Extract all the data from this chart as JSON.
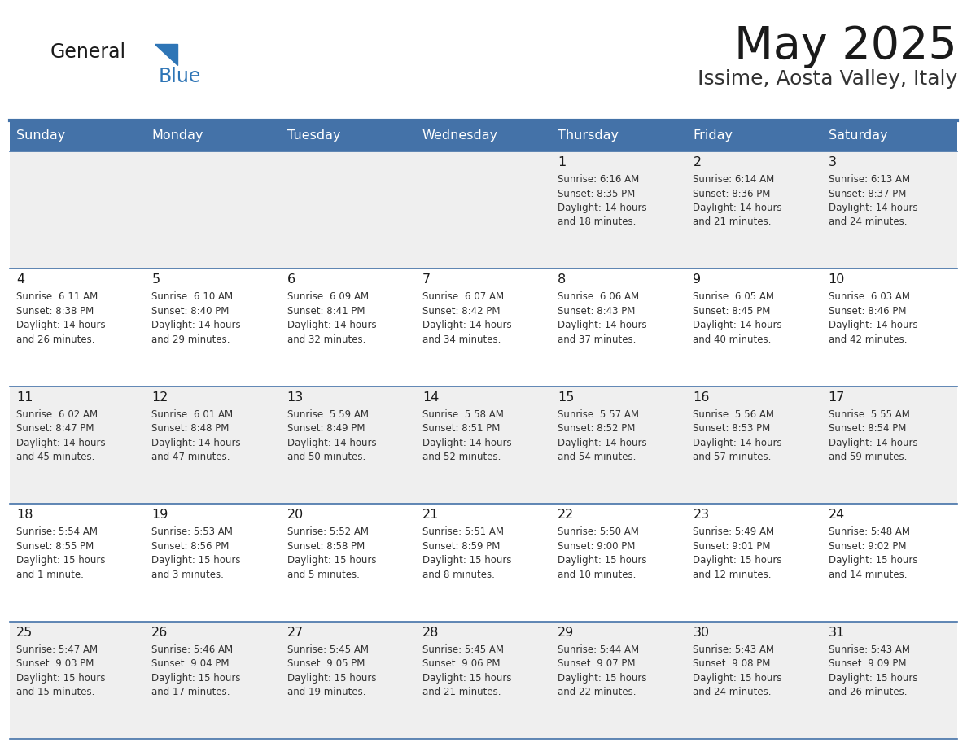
{
  "title": "May 2025",
  "subtitle": "Issime, Aosta Valley, Italy",
  "header_bg": "#4472A8",
  "header_text": "#FFFFFF",
  "row_bg_odd": "#EFEFEF",
  "row_bg_even": "#FFFFFF",
  "border_color": "#4472A8",
  "border_color_light": "#C8C8C8",
  "day_names": [
    "Sunday",
    "Monday",
    "Tuesday",
    "Wednesday",
    "Thursday",
    "Friday",
    "Saturday"
  ],
  "title_color": "#1A1A1A",
  "subtitle_color": "#333333",
  "day_number_color": "#1A1A1A",
  "info_color": "#333333",
  "logo_general_color": "#1A1A1A",
  "logo_blue_color": "#2E75B6",
  "weeks": [
    [
      {
        "day": "",
        "info": ""
      },
      {
        "day": "",
        "info": ""
      },
      {
        "day": "",
        "info": ""
      },
      {
        "day": "",
        "info": ""
      },
      {
        "day": "1",
        "info": "Sunrise: 6:16 AM\nSunset: 8:35 PM\nDaylight: 14 hours\nand 18 minutes."
      },
      {
        "day": "2",
        "info": "Sunrise: 6:14 AM\nSunset: 8:36 PM\nDaylight: 14 hours\nand 21 minutes."
      },
      {
        "day": "3",
        "info": "Sunrise: 6:13 AM\nSunset: 8:37 PM\nDaylight: 14 hours\nand 24 minutes."
      }
    ],
    [
      {
        "day": "4",
        "info": "Sunrise: 6:11 AM\nSunset: 8:38 PM\nDaylight: 14 hours\nand 26 minutes."
      },
      {
        "day": "5",
        "info": "Sunrise: 6:10 AM\nSunset: 8:40 PM\nDaylight: 14 hours\nand 29 minutes."
      },
      {
        "day": "6",
        "info": "Sunrise: 6:09 AM\nSunset: 8:41 PM\nDaylight: 14 hours\nand 32 minutes."
      },
      {
        "day": "7",
        "info": "Sunrise: 6:07 AM\nSunset: 8:42 PM\nDaylight: 14 hours\nand 34 minutes."
      },
      {
        "day": "8",
        "info": "Sunrise: 6:06 AM\nSunset: 8:43 PM\nDaylight: 14 hours\nand 37 minutes."
      },
      {
        "day": "9",
        "info": "Sunrise: 6:05 AM\nSunset: 8:45 PM\nDaylight: 14 hours\nand 40 minutes."
      },
      {
        "day": "10",
        "info": "Sunrise: 6:03 AM\nSunset: 8:46 PM\nDaylight: 14 hours\nand 42 minutes."
      }
    ],
    [
      {
        "day": "11",
        "info": "Sunrise: 6:02 AM\nSunset: 8:47 PM\nDaylight: 14 hours\nand 45 minutes."
      },
      {
        "day": "12",
        "info": "Sunrise: 6:01 AM\nSunset: 8:48 PM\nDaylight: 14 hours\nand 47 minutes."
      },
      {
        "day": "13",
        "info": "Sunrise: 5:59 AM\nSunset: 8:49 PM\nDaylight: 14 hours\nand 50 minutes."
      },
      {
        "day": "14",
        "info": "Sunrise: 5:58 AM\nSunset: 8:51 PM\nDaylight: 14 hours\nand 52 minutes."
      },
      {
        "day": "15",
        "info": "Sunrise: 5:57 AM\nSunset: 8:52 PM\nDaylight: 14 hours\nand 54 minutes."
      },
      {
        "day": "16",
        "info": "Sunrise: 5:56 AM\nSunset: 8:53 PM\nDaylight: 14 hours\nand 57 minutes."
      },
      {
        "day": "17",
        "info": "Sunrise: 5:55 AM\nSunset: 8:54 PM\nDaylight: 14 hours\nand 59 minutes."
      }
    ],
    [
      {
        "day": "18",
        "info": "Sunrise: 5:54 AM\nSunset: 8:55 PM\nDaylight: 15 hours\nand 1 minute."
      },
      {
        "day": "19",
        "info": "Sunrise: 5:53 AM\nSunset: 8:56 PM\nDaylight: 15 hours\nand 3 minutes."
      },
      {
        "day": "20",
        "info": "Sunrise: 5:52 AM\nSunset: 8:58 PM\nDaylight: 15 hours\nand 5 minutes."
      },
      {
        "day": "21",
        "info": "Sunrise: 5:51 AM\nSunset: 8:59 PM\nDaylight: 15 hours\nand 8 minutes."
      },
      {
        "day": "22",
        "info": "Sunrise: 5:50 AM\nSunset: 9:00 PM\nDaylight: 15 hours\nand 10 minutes."
      },
      {
        "day": "23",
        "info": "Sunrise: 5:49 AM\nSunset: 9:01 PM\nDaylight: 15 hours\nand 12 minutes."
      },
      {
        "day": "24",
        "info": "Sunrise: 5:48 AM\nSunset: 9:02 PM\nDaylight: 15 hours\nand 14 minutes."
      }
    ],
    [
      {
        "day": "25",
        "info": "Sunrise: 5:47 AM\nSunset: 9:03 PM\nDaylight: 15 hours\nand 15 minutes."
      },
      {
        "day": "26",
        "info": "Sunrise: 5:46 AM\nSunset: 9:04 PM\nDaylight: 15 hours\nand 17 minutes."
      },
      {
        "day": "27",
        "info": "Sunrise: 5:45 AM\nSunset: 9:05 PM\nDaylight: 15 hours\nand 19 minutes."
      },
      {
        "day": "28",
        "info": "Sunrise: 5:45 AM\nSunset: 9:06 PM\nDaylight: 15 hours\nand 21 minutes."
      },
      {
        "day": "29",
        "info": "Sunrise: 5:44 AM\nSunset: 9:07 PM\nDaylight: 15 hours\nand 22 minutes."
      },
      {
        "day": "30",
        "info": "Sunrise: 5:43 AM\nSunset: 9:08 PM\nDaylight: 15 hours\nand 24 minutes."
      },
      {
        "day": "31",
        "info": "Sunrise: 5:43 AM\nSunset: 9:09 PM\nDaylight: 15 hours\nand 26 minutes."
      }
    ]
  ]
}
